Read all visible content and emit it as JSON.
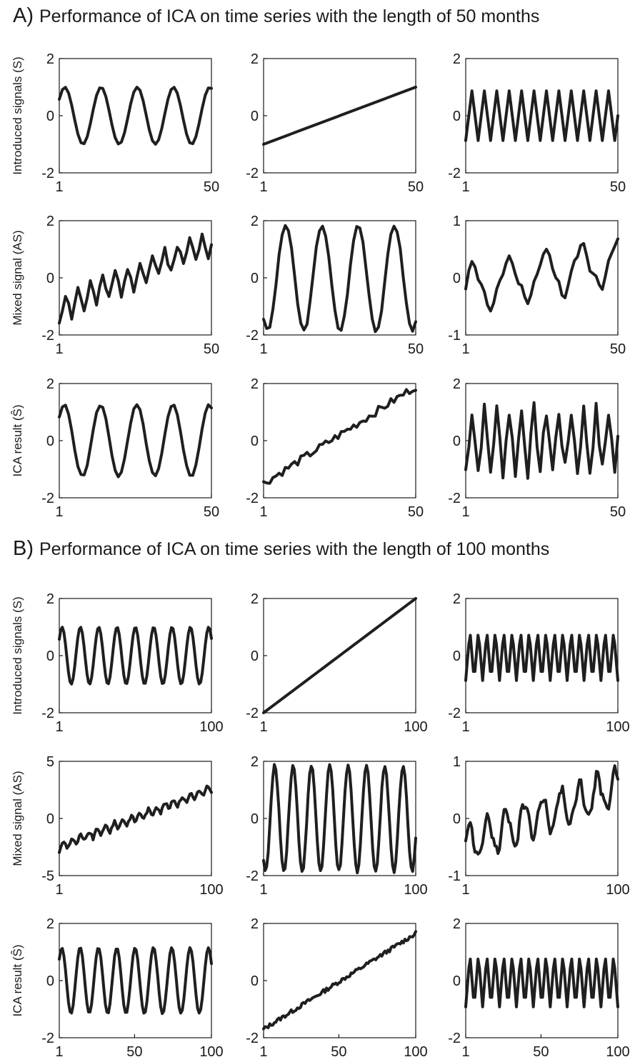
{
  "sections": {
    "a": {
      "letter": "A)",
      "title": "Performance of ICA on time series with the length of 50 months"
    },
    "b": {
      "letter": "B)",
      "title": "Performance of ICA on time series with the length of 100 months"
    }
  },
  "row_labels": [
    "Introduced signals (S)",
    "Mixed signal (AS)",
    "ICA result (Ŝ)"
  ],
  "line_color": "#1f1f1f",
  "chart_data": [
    {
      "type": "line",
      "panel": "A",
      "row": 0,
      "col": 0,
      "xlim": [
        1,
        50
      ],
      "ylim": [
        -2,
        2
      ],
      "xticks": [
        1,
        50
      ],
      "yticks": [
        -2,
        0,
        2
      ],
      "gen": "sin",
      "amplitude": 1.0,
      "cycles": 4.2,
      "phase_deg": 35,
      "noise": 0,
      "seed": 1
    },
    {
      "type": "line",
      "panel": "A",
      "row": 0,
      "col": 1,
      "xlim": [
        1,
        50
      ],
      "ylim": [
        -2,
        2
      ],
      "xticks": [
        1,
        50
      ],
      "yticks": [
        -2,
        0,
        2
      ],
      "gen": "linear",
      "from": -1,
      "to": 1
    },
    {
      "type": "line",
      "panel": "A",
      "row": 0,
      "col": 2,
      "xlim": [
        1,
        50
      ],
      "ylim": [
        -2,
        2
      ],
      "xticks": [
        1,
        50
      ],
      "yticks": [
        -2,
        0,
        2
      ],
      "gen": "zigzag",
      "amplitude": 0.87,
      "period": 4
    },
    {
      "type": "line",
      "panel": "A",
      "row": 1,
      "col": 0,
      "xlim": [
        1,
        50
      ],
      "ylim": [
        -2,
        2
      ],
      "xticks": [
        1,
        50
      ],
      "yticks": [
        -2,
        0,
        2
      ],
      "gen": "mix",
      "trend_from": -1.1,
      "trend_to": 1.3,
      "amplitude": 0.45,
      "period": 4,
      "noise": 0.15,
      "seed": 2
    },
    {
      "type": "line",
      "panel": "A",
      "row": 1,
      "col": 1,
      "xlim": [
        1,
        50
      ],
      "ylim": [
        -2,
        2
      ],
      "xticks": [
        1,
        50
      ],
      "yticks": [
        -2,
        0,
        2
      ],
      "gen": "sin",
      "amplitude": 1.85,
      "cycles": 4.2,
      "phase_deg": 230,
      "noise": 0.06,
      "seed": 3
    },
    {
      "type": "line",
      "panel": "A",
      "row": 1,
      "col": 2,
      "xlim": [
        1,
        50
      ],
      "ylim": [
        -1,
        1
      ],
      "xticks": [
        1,
        50
      ],
      "yticks": [
        -1,
        0,
        1
      ],
      "gen": "mix2",
      "amplitude": 0.38,
      "cycles": 4.2,
      "phase_deg": 20,
      "trend_from": -0.2,
      "trend_to": 0.3,
      "zig": 0.08,
      "period": 4,
      "noise": 0.05,
      "seed": 4
    },
    {
      "type": "line",
      "panel": "A",
      "row": 2,
      "col": 0,
      "xlim": [
        1,
        50
      ],
      "ylim": [
        -2,
        2
      ],
      "xticks": [
        1,
        50
      ],
      "yticks": [
        -2,
        0,
        2
      ],
      "gen": "sin",
      "amplitude": 1.25,
      "cycles": 4.2,
      "phase_deg": 40,
      "noise": 0.03,
      "seed": 5
    },
    {
      "type": "line",
      "panel": "A",
      "row": 2,
      "col": 1,
      "xlim": [
        1,
        50
      ],
      "ylim": [
        -2,
        2
      ],
      "xticks": [
        1,
        50
      ],
      "yticks": [
        -2,
        0,
        2
      ],
      "gen": "linear",
      "from": -1.5,
      "to": 1.9,
      "noise": 0.14,
      "seed": 6
    },
    {
      "type": "line",
      "panel": "A",
      "row": 2,
      "col": 2,
      "xlim": [
        1,
        50
      ],
      "ylim": [
        -2,
        2
      ],
      "xticks": [
        1,
        50
      ],
      "yticks": [
        -2,
        0,
        2
      ],
      "gen": "zigzag",
      "amplitude": 1.05,
      "period": 4,
      "noise": 0.3,
      "seed": 7
    },
    {
      "type": "line",
      "panel": "B",
      "row": 0,
      "col": 0,
      "xlim": [
        1,
        100
      ],
      "ylim": [
        -2,
        2
      ],
      "xticks": [
        1,
        100
      ],
      "yticks": [
        -2,
        0,
        2
      ],
      "gen": "sin",
      "amplitude": 1.0,
      "cycles": 8.3,
      "phase_deg": 35,
      "noise": 0,
      "seed": 8
    },
    {
      "type": "line",
      "panel": "B",
      "row": 0,
      "col": 1,
      "xlim": [
        1,
        100
      ],
      "ylim": [
        -2,
        2
      ],
      "xticks": [
        1,
        100
      ],
      "yticks": [
        -2,
        0,
        2
      ],
      "gen": "linear",
      "from": -2,
      "to": 2
    },
    {
      "type": "line",
      "panel": "B",
      "row": 0,
      "col": 2,
      "xlim": [
        1,
        100
      ],
      "ylim": [
        -2,
        2
      ],
      "xticks": [
        1,
        100
      ],
      "yticks": [
        -2,
        0,
        2
      ],
      "gen": "zigzag",
      "amplitude": 0.87,
      "period": 5.5
    },
    {
      "type": "line",
      "panel": "B",
      "row": 1,
      "col": 0,
      "xlim": [
        1,
        100
      ],
      "ylim": [
        -5,
        5
      ],
      "xticks": [
        1,
        100
      ],
      "yticks": [
        -5,
        0,
        5
      ],
      "gen": "mix",
      "trend_from": -2.5,
      "trend_to": 2.6,
      "amplitude": 0.4,
      "period": 5.5,
      "noise": 0.15,
      "seed": 9
    },
    {
      "type": "line",
      "panel": "B",
      "row": 1,
      "col": 1,
      "xlim": [
        1,
        100
      ],
      "ylim": [
        -2,
        2
      ],
      "xticks": [
        1,
        100
      ],
      "yticks": [
        -2,
        0,
        2
      ],
      "gen": "sin",
      "amplitude": 1.85,
      "cycles": 8.3,
      "phase_deg": 230,
      "noise": 0.06,
      "seed": 10
    },
    {
      "type": "line",
      "panel": "B",
      "row": 1,
      "col": 2,
      "xlim": [
        1,
        100
      ],
      "ylim": [
        -1,
        1
      ],
      "xticks": [
        1,
        100
      ],
      "yticks": [
        -1,
        0,
        1
      ],
      "gen": "mix2",
      "amplitude": 0.32,
      "cycles": 8.3,
      "phase_deg": 20,
      "trend_from": -0.45,
      "trend_to": 0.55,
      "zig": 0.1,
      "period": 5.5,
      "noise": 0.06,
      "seed": 11
    },
    {
      "type": "line",
      "panel": "B",
      "row": 2,
      "col": 0,
      "xlim": [
        1,
        100
      ],
      "ylim": [
        -2,
        2
      ],
      "xticks": [
        1,
        50,
        100
      ],
      "yticks": [
        -2,
        0,
        2
      ],
      "gen": "sin",
      "amplitude": 1.15,
      "cycles": 8.3,
      "phase_deg": 40,
      "noise": 0.02,
      "seed": 12
    },
    {
      "type": "line",
      "panel": "B",
      "row": 2,
      "col": 1,
      "xlim": [
        1,
        100
      ],
      "ylim": [
        -2,
        2
      ],
      "xticks": [
        1,
        50,
        100
      ],
      "yticks": [
        -2,
        0,
        2
      ],
      "gen": "linear",
      "from": -1.7,
      "to": 1.65,
      "noise": 0.07,
      "seed": 13
    },
    {
      "type": "line",
      "panel": "B",
      "row": 2,
      "col": 2,
      "xlim": [
        1,
        100
      ],
      "ylim": [
        -2,
        2
      ],
      "xticks": [
        1,
        50,
        100
      ],
      "yticks": [
        -2,
        0,
        2
      ],
      "gen": "zigzag",
      "amplitude": 0.92,
      "period": 5.5
    }
  ]
}
